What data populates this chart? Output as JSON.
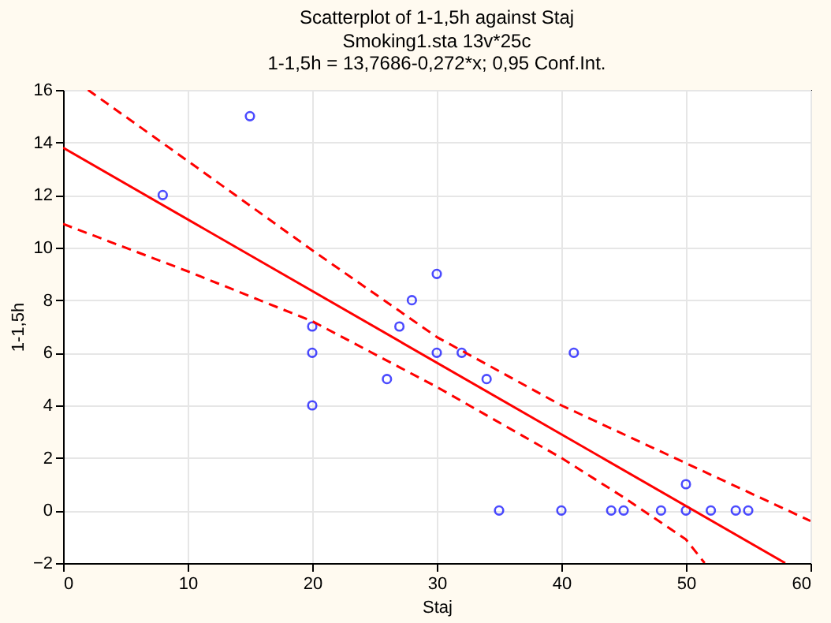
{
  "chart_data": {
    "type": "scatter",
    "title": "Scatterplot of 1-1,5h against Staj",
    "subtitle": "Smoking1.sta 13v*25c",
    "annotations": [
      "1-1,5h = 13,7686-0,272*x; 0,95 Conf.Int."
    ],
    "xlabel": "Staj",
    "ylabel": "1-1,5h",
    "series": [
      {
        "color": "#0000ff",
        "marker": "circle",
        "x": [
          8,
          15,
          20,
          20,
          20,
          26,
          27,
          28,
          30,
          30,
          32,
          34,
          35,
          40,
          41,
          44,
          45,
          48,
          50,
          50,
          52,
          54,
          55
        ],
        "values": [
          12,
          15,
          7,
          6,
          4,
          5,
          7,
          8,
          9,
          6,
          6,
          5,
          0,
          0,
          6,
          0,
          0,
          0,
          1,
          0,
          0,
          0,
          0
        ]
      },
      {
        "type": "line",
        "color": "#ff0000",
        "line_style": "solid",
        "x": [
          0,
          57.97
        ],
        "values": [
          13.8,
          -2
        ]
      },
      {
        "type": "line",
        "color": "#ff0000",
        "line_style": "dashed",
        "x": [
          2,
          10,
          20,
          30,
          40,
          50,
          60
        ],
        "values": [
          16,
          13.3,
          9.9,
          6.6,
          4.0,
          1.8,
          -0.4
        ]
      },
      {
        "type": "line",
        "color": "#ff0000",
        "line_style": "dashed",
        "x": [
          0,
          10,
          20,
          30,
          40,
          45,
          50,
          51.5
        ],
        "values": [
          10.9,
          9.1,
          7.2,
          4.7,
          2.0,
          0.5,
          -1.1,
          -2
        ]
      }
    ],
    "xlim": [
      0,
      60
    ],
    "xticks": [
      0,
      10,
      20,
      30,
      40,
      50,
      60
    ],
    "ylim": [
      -2,
      16
    ],
    "yticks": [
      -2,
      0,
      2,
      4,
      6,
      8,
      10,
      12,
      14,
      16
    ],
    "grid": true
  }
}
